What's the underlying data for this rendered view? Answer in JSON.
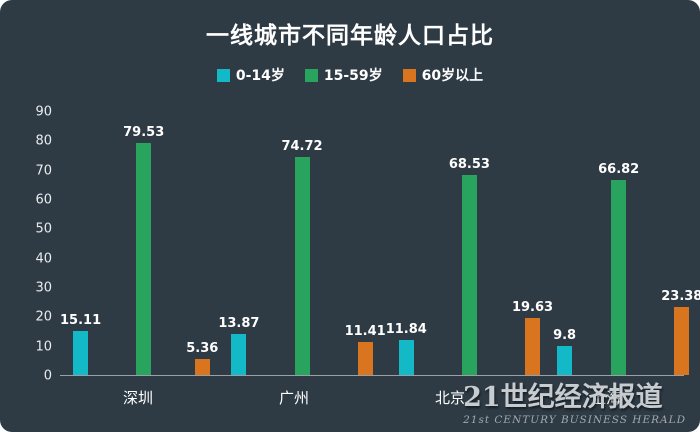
{
  "header": {
    "title": "一线城市不同年龄人口占比"
  },
  "watermark": {
    "brand_cn": "21世纪经济报道",
    "brand_en": "21st CENTURY BUSINESS HERALD"
  },
  "colors": {
    "background": "#2e3a44",
    "axis": "#99a1a7",
    "text": "#ffffff"
  },
  "chart_data": {
    "type": "bar",
    "title": "一线城市不同年龄人口占比",
    "categories": [
      "深圳",
      "广州",
      "北京",
      "上海"
    ],
    "series": [
      {
        "name": "0-14岁",
        "color": "#14b9c8",
        "values": [
          15.11,
          13.87,
          11.84,
          9.8
        ]
      },
      {
        "name": "15-59岁",
        "color": "#29a45e",
        "values": [
          79.53,
          74.72,
          68.53,
          66.82
        ]
      },
      {
        "name": "60岁以上",
        "color": "#d9751e",
        "values": [
          5.36,
          11.41,
          19.63,
          23.38
        ]
      }
    ],
    "xlabel": "",
    "ylabel": "",
    "ylim": [
      0,
      90
    ],
    "yticks": [
      0,
      10,
      20,
      30,
      40,
      50,
      60,
      70,
      80,
      90
    ],
    "grid": false,
    "legend_position": "top"
  }
}
